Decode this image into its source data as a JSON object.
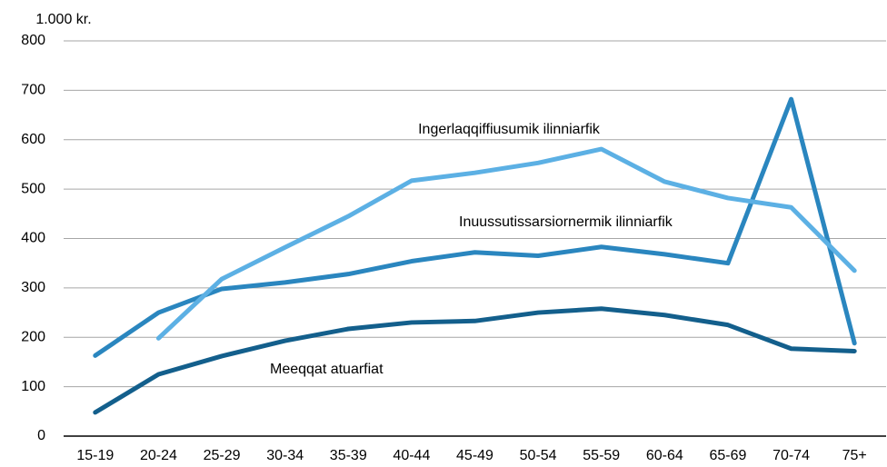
{
  "chart_data": {
    "type": "line",
    "y_label": "1.000 kr.",
    "categories": [
      "15-19",
      "20-24",
      "25-29",
      "30-34",
      "35-39",
      "40-44",
      "45-49",
      "50-54",
      "55-59",
      "60-64",
      "65-69",
      "70-74",
      "75+"
    ],
    "series": [
      {
        "name": "Meeqqat atuarfiat",
        "color": "#135f8c",
        "values": [
          48,
          125,
          162,
          193,
          217,
          230,
          233,
          250,
          258,
          245,
          225,
          177,
          172
        ]
      },
      {
        "name": "Inuussutissarsiornermik ilinniarfik",
        "color": "#2a86bf",
        "values": [
          163,
          250,
          298,
          311,
          328,
          354,
          372,
          365,
          383,
          368,
          350,
          682,
          188
        ]
      },
      {
        "name": "Ingerlaqqiffiusumik ilinniarfik",
        "color": "#5cb0e4",
        "values": [
          null,
          198,
          318,
          382,
          445,
          517,
          533,
          553,
          581,
          515,
          482,
          463,
          335
        ]
      }
    ],
    "ylim": [
      0,
      800
    ],
    "yticks": [
      0,
      100,
      200,
      300,
      400,
      500,
      600,
      700,
      800
    ],
    "grid": true
  }
}
